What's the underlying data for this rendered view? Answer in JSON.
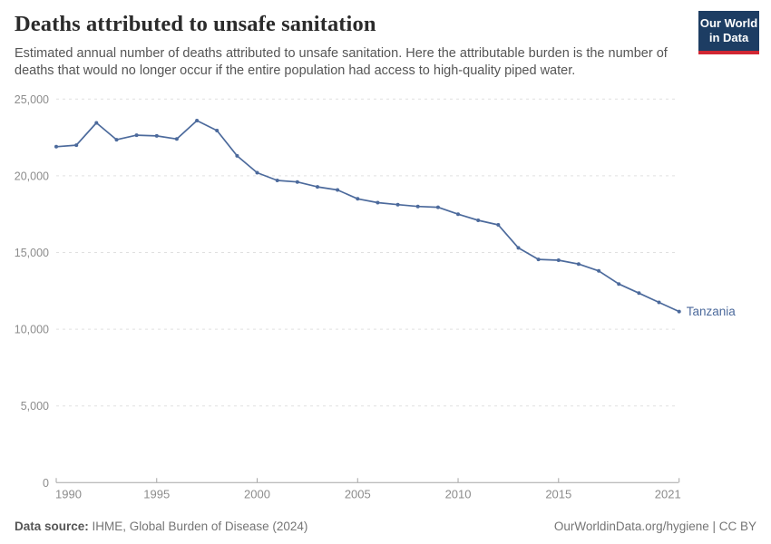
{
  "header": {
    "title": "Deaths attributed to unsafe sanitation",
    "subtitle": "Estimated annual number of deaths attributed to unsafe sanitation. Here the attributable burden is the number of deaths that would no longer occur if the entire population had access to high-quality piped water."
  },
  "logo": {
    "line1": "Our World",
    "line2": "in Data"
  },
  "chart_data": {
    "type": "line",
    "title": "Deaths attributed to unsafe sanitation",
    "entity_label": "Tanzania",
    "x": [
      1990,
      1991,
      1992,
      1993,
      1994,
      1995,
      1996,
      1997,
      1998,
      1999,
      2000,
      2001,
      2002,
      2003,
      2004,
      2005,
      2006,
      2007,
      2008,
      2009,
      2010,
      2011,
      2012,
      2013,
      2014,
      2015,
      2016,
      2017,
      2018,
      2019,
      2020,
      2021
    ],
    "series": [
      {
        "name": "Tanzania",
        "values": [
          21900,
          22000,
          23450,
          22350,
          22650,
          22600,
          22400,
          23600,
          22950,
          21300,
          20200,
          19700,
          19600,
          19280,
          19080,
          18500,
          18250,
          18120,
          18000,
          17950,
          17500,
          17100,
          16800,
          15300,
          14550,
          14500,
          14250,
          13800,
          12950,
          12350,
          11750,
          11150
        ]
      }
    ],
    "xlabel": "",
    "ylabel": "",
    "ylim": [
      0,
      25000
    ],
    "yticks": [
      0,
      5000,
      10000,
      15000,
      20000,
      25000
    ],
    "ytick_labels": [
      "0",
      "5,000",
      "10,000",
      "15,000",
      "20,000",
      "25,000"
    ],
    "xticks": [
      1990,
      1995,
      2000,
      2005,
      2010,
      2015,
      2021
    ],
    "grid": "horizontal-dashed",
    "legend_position": "end-of-line-label",
    "colors": {
      "line": "#4C6A9C",
      "entity_label": "#4C6A9C",
      "gridline": "#e0e0e0",
      "axis": "#a5a5a5",
      "tick_label": "#8c8c8c"
    }
  },
  "footer": {
    "source_label": "Data source:",
    "source_text": " IHME, Global Burden of Disease (2024)",
    "credit": "OurWorldinData.org/hygiene | CC BY"
  }
}
